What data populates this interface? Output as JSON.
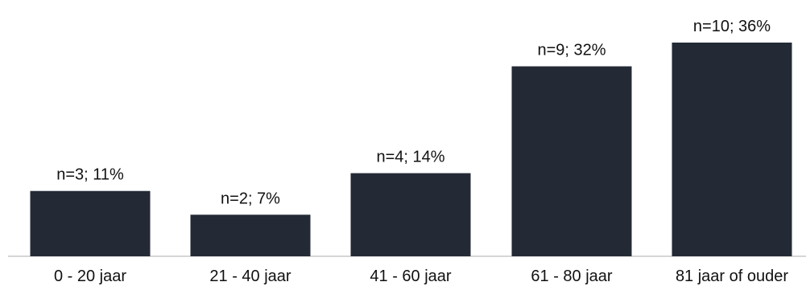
{
  "chart_data": {
    "type": "bar",
    "categories": [
      "0 - 20 jaar",
      "21 - 40 jaar",
      "41 - 60 jaar",
      "61 - 80 jaar",
      "81 jaar of ouder"
    ],
    "values": [
      11,
      7,
      14,
      32,
      36
    ],
    "counts": [
      3,
      2,
      4,
      9,
      10
    ],
    "data_labels": [
      "n=3; 11%",
      "n=2; 7%",
      "n=4; 14%",
      "n=9; 32%",
      "n=10; 36%"
    ],
    "ylim": [
      0,
      36
    ],
    "grid": false,
    "legend": "none",
    "colors": {
      "bar": "#232a36",
      "axis": "#c8c8c8",
      "text": "#111111"
    }
  }
}
